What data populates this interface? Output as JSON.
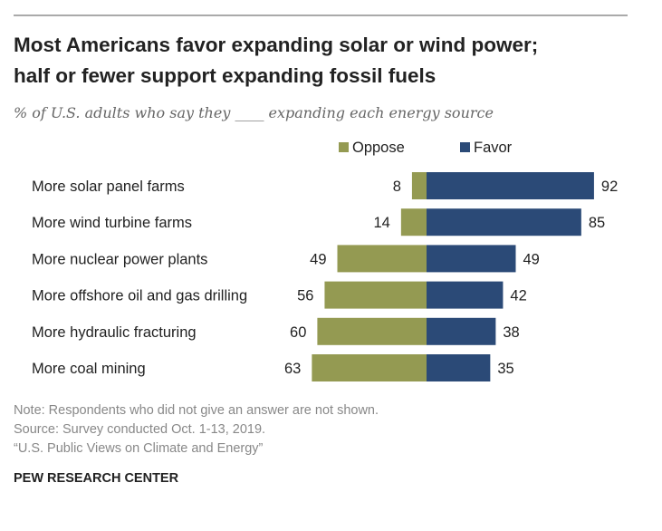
{
  "chart_data": {
    "type": "bar",
    "orientation": "horizontal-diverging",
    "title": [
      "Most Americans favor expanding solar or wind power;",
      "half or fewer support expanding fossil fuels"
    ],
    "subtitle": "% of U.S. adults who say they ____ expanding each energy source",
    "categories": [
      "More solar panel farms",
      "More wind turbine farms",
      "More nuclear power plants",
      "More offshore oil and gas drilling",
      "More hydraulic fracturing",
      "More coal mining"
    ],
    "series": [
      {
        "name": "Oppose",
        "color": "#949a52",
        "values": [
          8,
          14,
          49,
          56,
          60,
          63
        ]
      },
      {
        "name": "Favor",
        "color": "#2b4a77",
        "values": [
          92,
          85,
          49,
          42,
          38,
          35
        ]
      }
    ],
    "legend": "top",
    "grid": false
  },
  "notes": [
    "Note: Respondents who did not give an answer are not shown.",
    "Source: Survey conducted Oct. 1-13, 2019.",
    "“U.S. Public Views on Climate and Energy”"
  ],
  "brand": "PEW RESEARCH CENTER"
}
